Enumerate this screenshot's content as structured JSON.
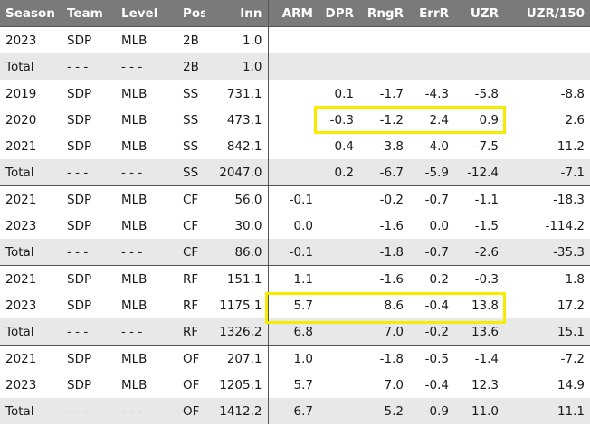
{
  "columns": [
    "Season",
    "Team",
    "Level",
    "Pos",
    "Inn",
    "ARM",
    "DPR",
    "RngR",
    "ErrR",
    "UZR",
    "UZR/150"
  ],
  "rows": [
    {
      "season": "2023",
      "team": "SDP",
      "level": "MLB",
      "pos": "2B",
      "inn": "1.0",
      "arm": "",
      "dpr": "",
      "rngr": "",
      "errr": "",
      "uzr": "",
      "uzr150": ""
    },
    {
      "season": "Total",
      "team": "- - -",
      "level": "- - -",
      "pos": "2B",
      "inn": "1.0",
      "arm": "",
      "dpr": "",
      "rngr": "",
      "errr": "",
      "uzr": "",
      "uzr150": ""
    },
    {
      "season": "2019",
      "team": "SDP",
      "level": "MLB",
      "pos": "SS",
      "inn": "731.1",
      "arm": "",
      "dpr": "0.1",
      "rngr": "-1.7",
      "errr": "-4.3",
      "uzr": "-5.8",
      "uzr150": "-8.8"
    },
    {
      "season": "2020",
      "team": "SDP",
      "level": "MLB",
      "pos": "SS",
      "inn": "473.1",
      "arm": "",
      "dpr": "-0.3",
      "rngr": "-1.2",
      "errr": "2.4",
      "uzr": "0.9",
      "uzr150": "2.6"
    },
    {
      "season": "2021",
      "team": "SDP",
      "level": "MLB",
      "pos": "SS",
      "inn": "842.1",
      "arm": "",
      "dpr": "0.4",
      "rngr": "-3.8",
      "errr": "-4.0",
      "uzr": "-7.5",
      "uzr150": "-11.2"
    },
    {
      "season": "Total",
      "team": "- - -",
      "level": "- - -",
      "pos": "SS",
      "inn": "2047.0",
      "arm": "",
      "dpr": "0.2",
      "rngr": "-6.7",
      "errr": "-5.9",
      "uzr": "-12.4",
      "uzr150": "-7.1"
    },
    {
      "season": "2021",
      "team": "SDP",
      "level": "MLB",
      "pos": "CF",
      "inn": "56.0",
      "arm": "-0.1",
      "dpr": "",
      "rngr": "-0.2",
      "errr": "-0.7",
      "uzr": "-1.1",
      "uzr150": "-18.3"
    },
    {
      "season": "2023",
      "team": "SDP",
      "level": "MLB",
      "pos": "CF",
      "inn": "30.0",
      "arm": "0.0",
      "dpr": "",
      "rngr": "-1.6",
      "errr": "0.0",
      "uzr": "-1.5",
      "uzr150": "-114.2"
    },
    {
      "season": "Total",
      "team": "- - -",
      "level": "- - -",
      "pos": "CF",
      "inn": "86.0",
      "arm": "-0.1",
      "dpr": "",
      "rngr": "-1.8",
      "errr": "-0.7",
      "uzr": "-2.6",
      "uzr150": "-35.3"
    },
    {
      "season": "2021",
      "team": "SDP",
      "level": "MLB",
      "pos": "RF",
      "inn": "151.1",
      "arm": "1.1",
      "dpr": "",
      "rngr": "-1.6",
      "errr": "0.2",
      "uzr": "-0.3",
      "uzr150": "1.8"
    },
    {
      "season": "2023",
      "team": "SDP",
      "level": "MLB",
      "pos": "RF",
      "inn": "1175.1",
      "arm": "5.7",
      "dpr": "",
      "rngr": "8.6",
      "errr": "-0.4",
      "uzr": "13.8",
      "uzr150": "17.2"
    },
    {
      "season": "Total",
      "team": "- - -",
      "level": "- - -",
      "pos": "RF",
      "inn": "1326.2",
      "arm": "6.8",
      "dpr": "",
      "rngr": "7.0",
      "errr": "-0.2",
      "uzr": "13.6",
      "uzr150": "15.1"
    },
    {
      "season": "2021",
      "team": "SDP",
      "level": "MLB",
      "pos": "OF",
      "inn": "207.1",
      "arm": "1.0",
      "dpr": "",
      "rngr": "-1.8",
      "errr": "-0.5",
      "uzr": "-1.4",
      "uzr150": "-7.2"
    },
    {
      "season": "2023",
      "team": "SDP",
      "level": "MLB",
      "pos": "OF",
      "inn": "1205.1",
      "arm": "5.7",
      "dpr": "",
      "rngr": "7.0",
      "errr": "-0.4",
      "uzr": "12.3",
      "uzr150": "14.9"
    },
    {
      "season": "Total",
      "team": "- - -",
      "level": "- - -",
      "pos": "OF",
      "inn": "1412.2",
      "arm": "6.7",
      "dpr": "",
      "rngr": "5.2",
      "errr": "-0.9",
      "uzr": "11.0",
      "uzr150": "11.1"
    }
  ],
  "highlight_color": "#f5ec00"
}
